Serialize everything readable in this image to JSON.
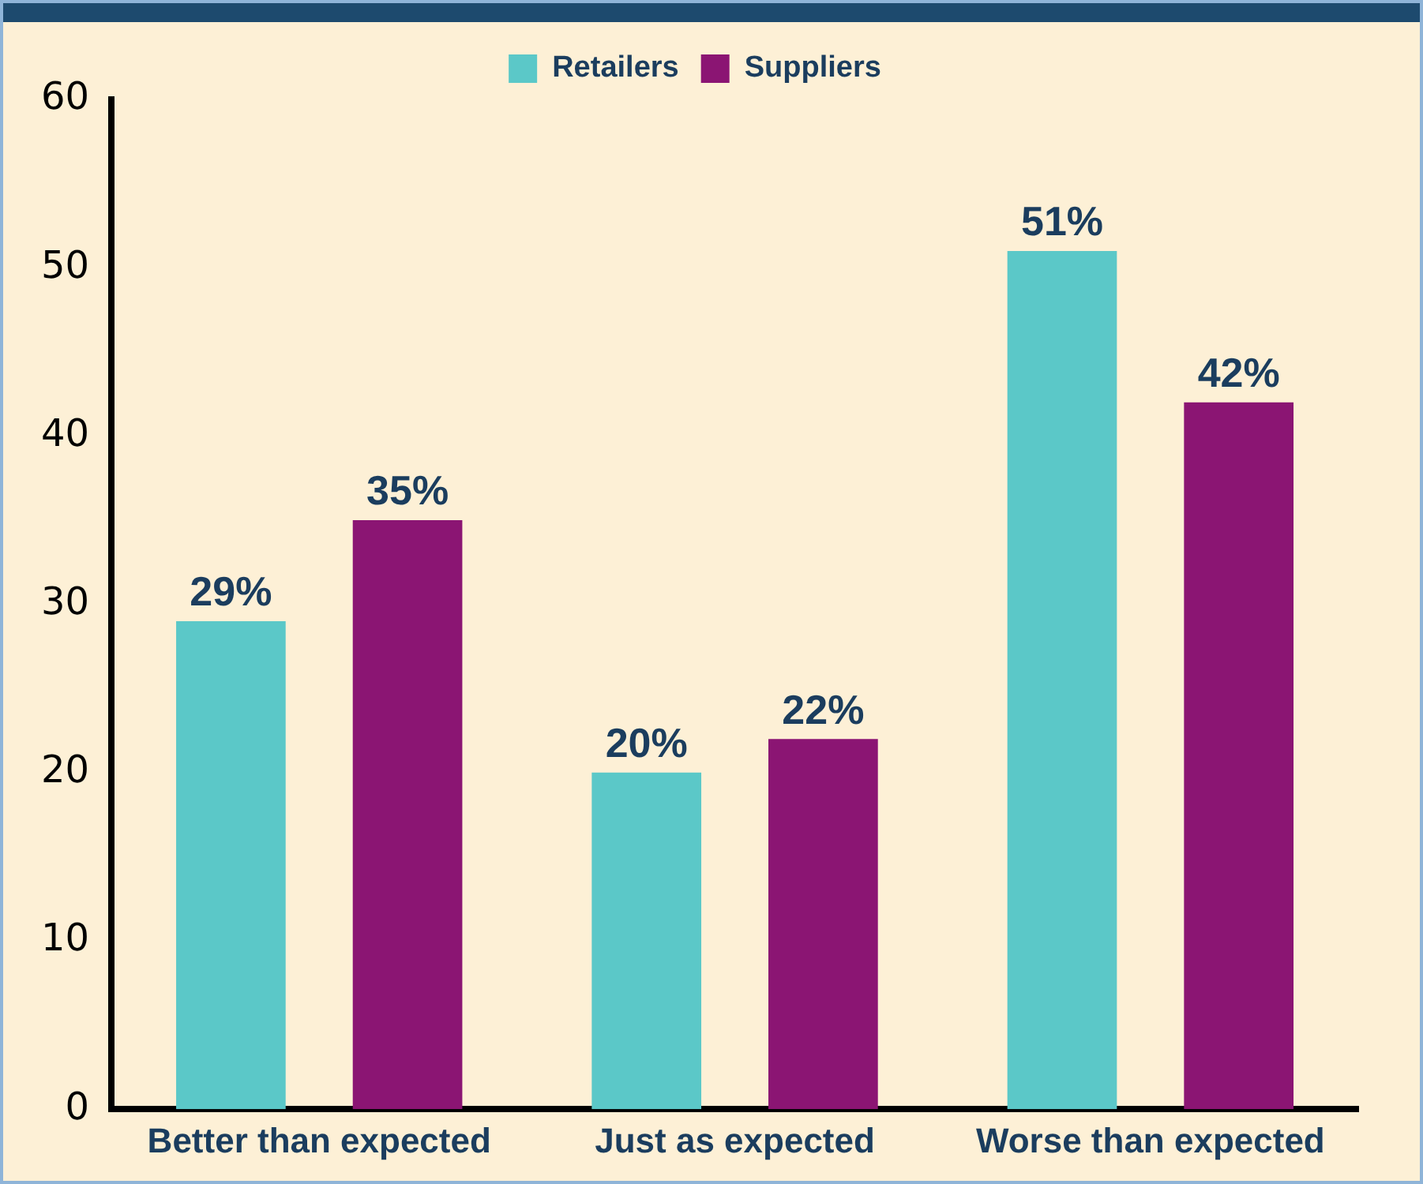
{
  "chart_data": {
    "type": "bar",
    "categories": [
      "Better than expected",
      "Just as expected",
      "Worse than expected"
    ],
    "series": [
      {
        "name": "Retailers",
        "color": "#5bc8c8",
        "values": [
          29,
          20,
          51
        ],
        "value_labels": [
          "29%",
          "20%",
          "51%"
        ]
      },
      {
        "name": "Suppliers",
        "color": "#8b1573",
        "values": [
          35,
          22,
          42
        ],
        "value_labels": [
          "35%",
          "22%",
          "42%"
        ]
      }
    ],
    "ylim": [
      0,
      60
    ],
    "yticks": [
      0,
      10,
      20,
      30,
      40,
      50,
      60
    ],
    "grid": false,
    "legend": "top"
  }
}
